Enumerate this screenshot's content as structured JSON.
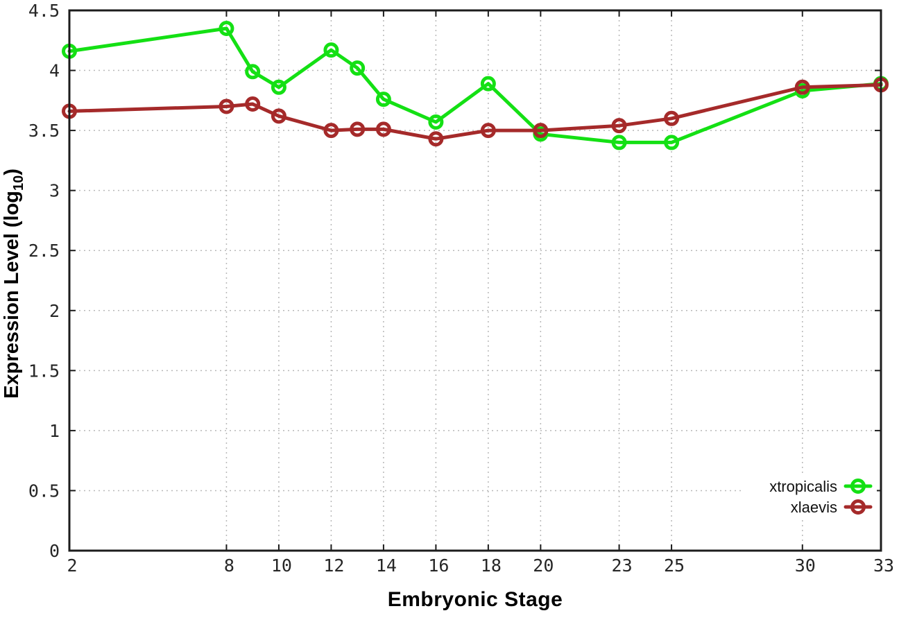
{
  "figure": {
    "background_color": "#ffffff",
    "border_color": "#1c1c1c",
    "grid_color": "#b8b8b8",
    "tick_label_color": "#262626"
  },
  "chart_data": {
    "type": "line",
    "title": "",
    "xlabel": "Embryonic Stage",
    "ylabel": "Expression Level (log10)",
    "ylabel_parts": {
      "prefix": "Expression Level (log",
      "sub": "10",
      "suffix": ")"
    },
    "x": [
      2,
      8,
      9,
      10,
      12,
      13,
      14,
      16,
      18,
      20,
      23,
      25,
      30,
      33
    ],
    "series": [
      {
        "name": "xtropicalis",
        "color": "#14e014",
        "values": [
          4.16,
          4.35,
          3.99,
          3.86,
          4.17,
          4.02,
          3.76,
          3.57,
          3.89,
          3.47,
          3.4,
          3.4,
          3.83,
          3.89
        ]
      },
      {
        "name": "xlaevis",
        "color": "#a52a2a",
        "values": [
          3.66,
          3.7,
          3.72,
          3.62,
          3.5,
          3.51,
          3.51,
          3.43,
          3.5,
          3.5,
          3.54,
          3.6,
          3.86,
          3.88
        ]
      }
    ],
    "xlim": [
      2,
      33
    ],
    "ylim": [
      0,
      4.5
    ],
    "x_ticks": [
      2,
      8,
      10,
      12,
      14,
      16,
      18,
      20,
      23,
      25,
      30,
      33
    ],
    "x_tick_labels": [
      "2",
      "8",
      "10",
      "12",
      "14",
      "16",
      "18",
      "20",
      "23",
      "25",
      "30",
      "33"
    ],
    "y_ticks": [
      0,
      0.5,
      1,
      1.5,
      2,
      2.5,
      3,
      3.5,
      4,
      4.5
    ],
    "y_tick_labels": [
      "0",
      "0.5",
      "1",
      "1.5",
      "2",
      "2.5",
      "3",
      "3.5",
      "4",
      "4.5"
    ],
    "grid": true,
    "marker": "open-circle",
    "legend_position": "inside-bottom-right",
    "legend": [
      "xtropicalis",
      "xlaevis"
    ]
  }
}
